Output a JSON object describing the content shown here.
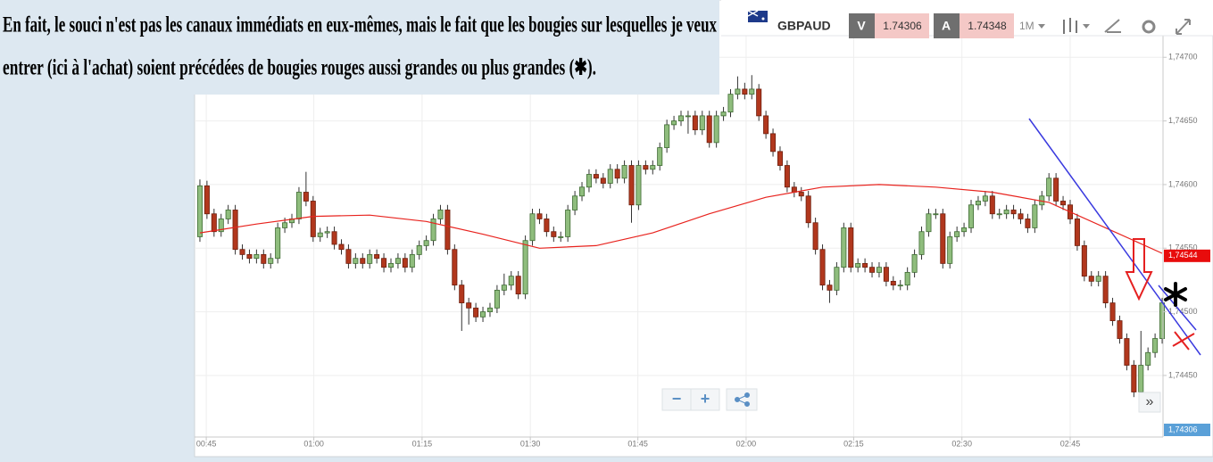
{
  "annotation": {
    "lines": [
      "En fait, le souci n'est pas les canaux immédiats en eux-mêmes, mais  le fait que les bougies sur lesquelles je veux",
      "entrer (ici à l'achat) soient précédées  de  bougies rouges aussi grandes ou plus grandes (✱)."
    ]
  },
  "toolbar": {
    "symbol": "GBPAUD",
    "bid_label": "V",
    "bid": "1.74306",
    "ask_label": "A",
    "ask": "1.74348",
    "timeframe": "1M"
  },
  "navigation": {
    "zoom_out": "−",
    "zoom_in": "+",
    "scroll": "»"
  },
  "chart_data": {
    "type": "candlestick",
    "up_color": "#8fbd7d",
    "down_color": "#b1371d",
    "grid": true,
    "xlim": [
      -0.5,
      136.5
    ],
    "ylim": [
      1.74403,
      1.74717
    ],
    "xticks": [
      {
        "value": 0.9,
        "label": "00:45"
      },
      {
        "value": 16.1,
        "label": "01:00"
      },
      {
        "value": 31.4,
        "label": "01:15"
      },
      {
        "value": 46.7,
        "label": "01:30"
      },
      {
        "value": 61.9,
        "label": "01:45"
      },
      {
        "value": 77.2,
        "label": "02:00"
      },
      {
        "value": 92.4,
        "label": "02:15"
      },
      {
        "value": 107.7,
        "label": "02:30"
      },
      {
        "value": 123.0,
        "label": "02:45"
      }
    ],
    "yticks": [
      {
        "value": 1.745,
        "label": "1,74500"
      },
      {
        "value": 1.7455,
        "label": "1,74550"
      },
      {
        "value": 1.746,
        "label": "1,74600"
      },
      {
        "value": 1.7465,
        "label": "1,74650"
      },
      {
        "value": 1.747,
        "label": "1,74700"
      },
      {
        "value": 1.7445,
        "label": "1,74450"
      }
    ],
    "price_tags": [
      {
        "value": 1.74544,
        "label": "1,74544",
        "color": "#e80c0c"
      },
      {
        "value": 1.74306,
        "label": "1,74306",
        "color": "#5aa0d8"
      }
    ],
    "overlay": {
      "color": "#e8231e",
      "x": [
        0,
        8,
        16,
        24,
        32,
        40,
        48,
        56,
        64,
        72,
        80,
        88,
        96,
        104,
        112,
        120,
        128,
        136
      ],
      "values": [
        1.74562,
        1.74569,
        1.74575,
        1.74576,
        1.74571,
        1.74561,
        1.7455,
        1.74552,
        1.74562,
        1.74577,
        1.7459,
        1.74598,
        1.746,
        1.74598,
        1.74594,
        1.74586,
        1.74566,
        1.74546
      ]
    },
    "open": [
      1.74559,
      1.74599,
      1.74577,
      1.74563,
      1.74573,
      1.7458,
      1.74549,
      1.74545,
      1.74542,
      1.74545,
      1.74538,
      1.74542,
      1.74566,
      1.7457,
      1.74573,
      1.74594,
      1.74587,
      1.74559,
      1.74562,
      1.74563,
      1.74553,
      1.74549,
      1.74538,
      1.74542,
      1.74538,
      1.74545,
      1.74542,
      1.74535,
      1.74538,
      1.74542,
      1.74535,
      1.74545,
      1.74552,
      1.74556,
      1.74573,
      1.7458,
      1.74549,
      1.74521,
      1.74507,
      1.74503,
      1.74496,
      1.745,
      1.74503,
      1.74517,
      1.74521,
      1.74528,
      1.74514,
      1.74556,
      1.74577,
      1.74573,
      1.74563,
      1.74559,
      1.74559,
      1.7458,
      1.74591,
      1.74598,
      1.74608,
      1.74605,
      1.74601,
      1.74612,
      1.74605,
      1.74615,
      1.74584,
      1.74615,
      1.74612,
      1.74615,
      1.74629,
      1.74647,
      1.7465,
      1.74654,
      1.74654,
      1.74643,
      1.74654,
      1.74633,
      1.74654,
      1.74657,
      1.74671,
      1.74675,
      1.74671,
      1.74675,
      1.74654,
      1.7464,
      1.74626,
      1.74615,
      1.74598,
      1.74594,
      1.74591,
      1.7457,
      1.74549,
      1.74521,
      1.74517,
      1.74535,
      1.74566,
      1.74535,
      1.74538,
      1.74535,
      1.74531,
      1.74535,
      1.74524,
      1.74521,
      1.74521,
      1.74531,
      1.74545,
      1.74563,
      1.74577,
      1.74577,
      1.74538,
      1.74559,
      1.74563,
      1.74566,
      1.74584,
      1.74587,
      1.74591,
      1.74577,
      1.74577,
      1.7458,
      1.74577,
      1.74573,
      1.74566,
      1.74584,
      1.74591,
      1.74605,
      1.74587,
      1.74584,
      1.74573,
      1.74552,
      1.74528,
      1.74524,
      1.74528,
      1.74507,
      1.74493,
      1.74479,
      1.74458,
      1.74437,
      1.74458,
      1.74468,
      1.74479
    ],
    "high": [
      1.74604,
      1.74603,
      1.74581,
      1.74577,
      1.74584,
      1.74584,
      1.74553,
      1.74549,
      1.74549,
      1.74549,
      1.74546,
      1.7457,
      1.74574,
      1.74577,
      1.74598,
      1.7461,
      1.74591,
      1.74566,
      1.74567,
      1.74567,
      1.74557,
      1.74553,
      1.74546,
      1.74546,
      1.74549,
      1.74549,
      1.74546,
      1.74542,
      1.74546,
      1.74546,
      1.74549,
      1.74556,
      1.7456,
      1.74577,
      1.74584,
      1.74584,
      1.74553,
      1.74525,
      1.74511,
      1.74507,
      1.74504,
      1.74507,
      1.74521,
      1.7453,
      1.74532,
      1.74532,
      1.7456,
      1.74581,
      1.74581,
      1.74577,
      1.74567,
      1.74563,
      1.74584,
      1.74595,
      1.74602,
      1.74612,
      1.74612,
      1.74609,
      1.74616,
      1.74616,
      1.74619,
      1.74619,
      1.74619,
      1.74619,
      1.74619,
      1.74633,
      1.74651,
      1.74654,
      1.74658,
      1.74658,
      1.74658,
      1.74658,
      1.74658,
      1.74658,
      1.74661,
      1.74675,
      1.74685,
      1.7468,
      1.74686,
      1.74679,
      1.74658,
      1.74644,
      1.7463,
      1.74619,
      1.74602,
      1.74598,
      1.74595,
      1.74574,
      1.74553,
      1.74525,
      1.74539,
      1.7457,
      1.7457,
      1.74542,
      1.74542,
      1.74539,
      1.74539,
      1.74539,
      1.74528,
      1.74525,
      1.74535,
      1.74549,
      1.74567,
      1.74581,
      1.74581,
      1.74581,
      1.74563,
      1.74567,
      1.7457,
      1.74588,
      1.74591,
      1.74595,
      1.74595,
      1.74581,
      1.74584,
      1.74584,
      1.74581,
      1.74577,
      1.74588,
      1.74595,
      1.74609,
      1.74609,
      1.74591,
      1.74588,
      1.74577,
      1.74556,
      1.74532,
      1.74532,
      1.74532,
      1.74511,
      1.74497,
      1.74483,
      1.74462,
      1.74485,
      1.74472,
      1.74483,
      1.74511
    ],
    "low": [
      1.74555,
      1.74573,
      1.74559,
      1.74559,
      1.74569,
      1.74545,
      1.74541,
      1.74538,
      1.74538,
      1.74534,
      1.74534,
      1.74538,
      1.74562,
      1.74566,
      1.74569,
      1.74583,
      1.74555,
      1.74555,
      1.74558,
      1.74549,
      1.74545,
      1.74534,
      1.74534,
      1.74534,
      1.74534,
      1.74538,
      1.74531,
      1.74531,
      1.74534,
      1.74531,
      1.74531,
      1.74541,
      1.74548,
      1.74552,
      1.74569,
      1.74545,
      1.74517,
      1.74485,
      1.7449,
      1.74492,
      1.74492,
      1.74496,
      1.74499,
      1.74513,
      1.74517,
      1.7451,
      1.7451,
      1.74552,
      1.74569,
      1.74559,
      1.74555,
      1.74555,
      1.74555,
      1.74576,
      1.74587,
      1.74594,
      1.74601,
      1.74597,
      1.74597,
      1.74601,
      1.74601,
      1.7457,
      1.7458,
      1.74608,
      1.74608,
      1.74611,
      1.74625,
      1.74643,
      1.74646,
      1.7464,
      1.74639,
      1.74639,
      1.74629,
      1.74629,
      1.7465,
      1.74653,
      1.74667,
      1.74667,
      1.74667,
      1.7465,
      1.74636,
      1.74622,
      1.74611,
      1.74594,
      1.7459,
      1.74587,
      1.74566,
      1.74545,
      1.74517,
      1.74507,
      1.74513,
      1.74531,
      1.74531,
      1.74531,
      1.74531,
      1.74527,
      1.74527,
      1.7452,
      1.74517,
      1.74517,
      1.74517,
      1.74527,
      1.74541,
      1.74559,
      1.74573,
      1.74534,
      1.74534,
      1.74555,
      1.74559,
      1.74562,
      1.7458,
      1.74583,
      1.74573,
      1.74573,
      1.74573,
      1.74573,
      1.74569,
      1.74562,
      1.74562,
      1.7458,
      1.74587,
      1.74583,
      1.7458,
      1.74569,
      1.74548,
      1.74524,
      1.7452,
      1.7452,
      1.74503,
      1.74489,
      1.74475,
      1.74454,
      1.74433,
      1.74433,
      1.74454,
      1.74464,
      1.74475
    ],
    "close": [
      1.74599,
      1.74577,
      1.74563,
      1.74573,
      1.7458,
      1.74549,
      1.74545,
      1.74542,
      1.74545,
      1.74538,
      1.74542,
      1.74566,
      1.7457,
      1.74573,
      1.74594,
      1.74587,
      1.74559,
      1.74562,
      1.74563,
      1.74553,
      1.74549,
      1.74538,
      1.74542,
      1.74538,
      1.74545,
      1.74542,
      1.74535,
      1.74538,
      1.74542,
      1.74535,
      1.74545,
      1.74552,
      1.74556,
      1.74573,
      1.7458,
      1.74549,
      1.74521,
      1.74507,
      1.74503,
      1.74496,
      1.745,
      1.74503,
      1.74517,
      1.74521,
      1.74528,
      1.74514,
      1.74556,
      1.74577,
      1.74573,
      1.74563,
      1.74559,
      1.74559,
      1.7458,
      1.74591,
      1.74598,
      1.74608,
      1.74605,
      1.74601,
      1.74612,
      1.74605,
      1.74615,
      1.74584,
      1.74615,
      1.74612,
      1.74615,
      1.74629,
      1.74647,
      1.7465,
      1.74654,
      1.74654,
      1.74643,
      1.74654,
      1.74633,
      1.74654,
      1.74657,
      1.74671,
      1.74675,
      1.74671,
      1.74675,
      1.74654,
      1.7464,
      1.74626,
      1.74615,
      1.74598,
      1.74594,
      1.74591,
      1.7457,
      1.74549,
      1.74521,
      1.74517,
      1.74535,
      1.74566,
      1.74535,
      1.74538,
      1.74535,
      1.74531,
      1.74535,
      1.74524,
      1.74521,
      1.74521,
      1.74531,
      1.74545,
      1.74563,
      1.74577,
      1.74577,
      1.74538,
      1.74559,
      1.74563,
      1.74566,
      1.74584,
      1.74587,
      1.74591,
      1.74577,
      1.74577,
      1.7458,
      1.74577,
      1.74573,
      1.74566,
      1.74584,
      1.74591,
      1.74605,
      1.74587,
      1.74584,
      1.74573,
      1.74552,
      1.74528,
      1.74524,
      1.74528,
      1.74507,
      1.74493,
      1.74479,
      1.74458,
      1.74437,
      1.74458,
      1.74468,
      1.74479,
      1.74507
    ]
  }
}
